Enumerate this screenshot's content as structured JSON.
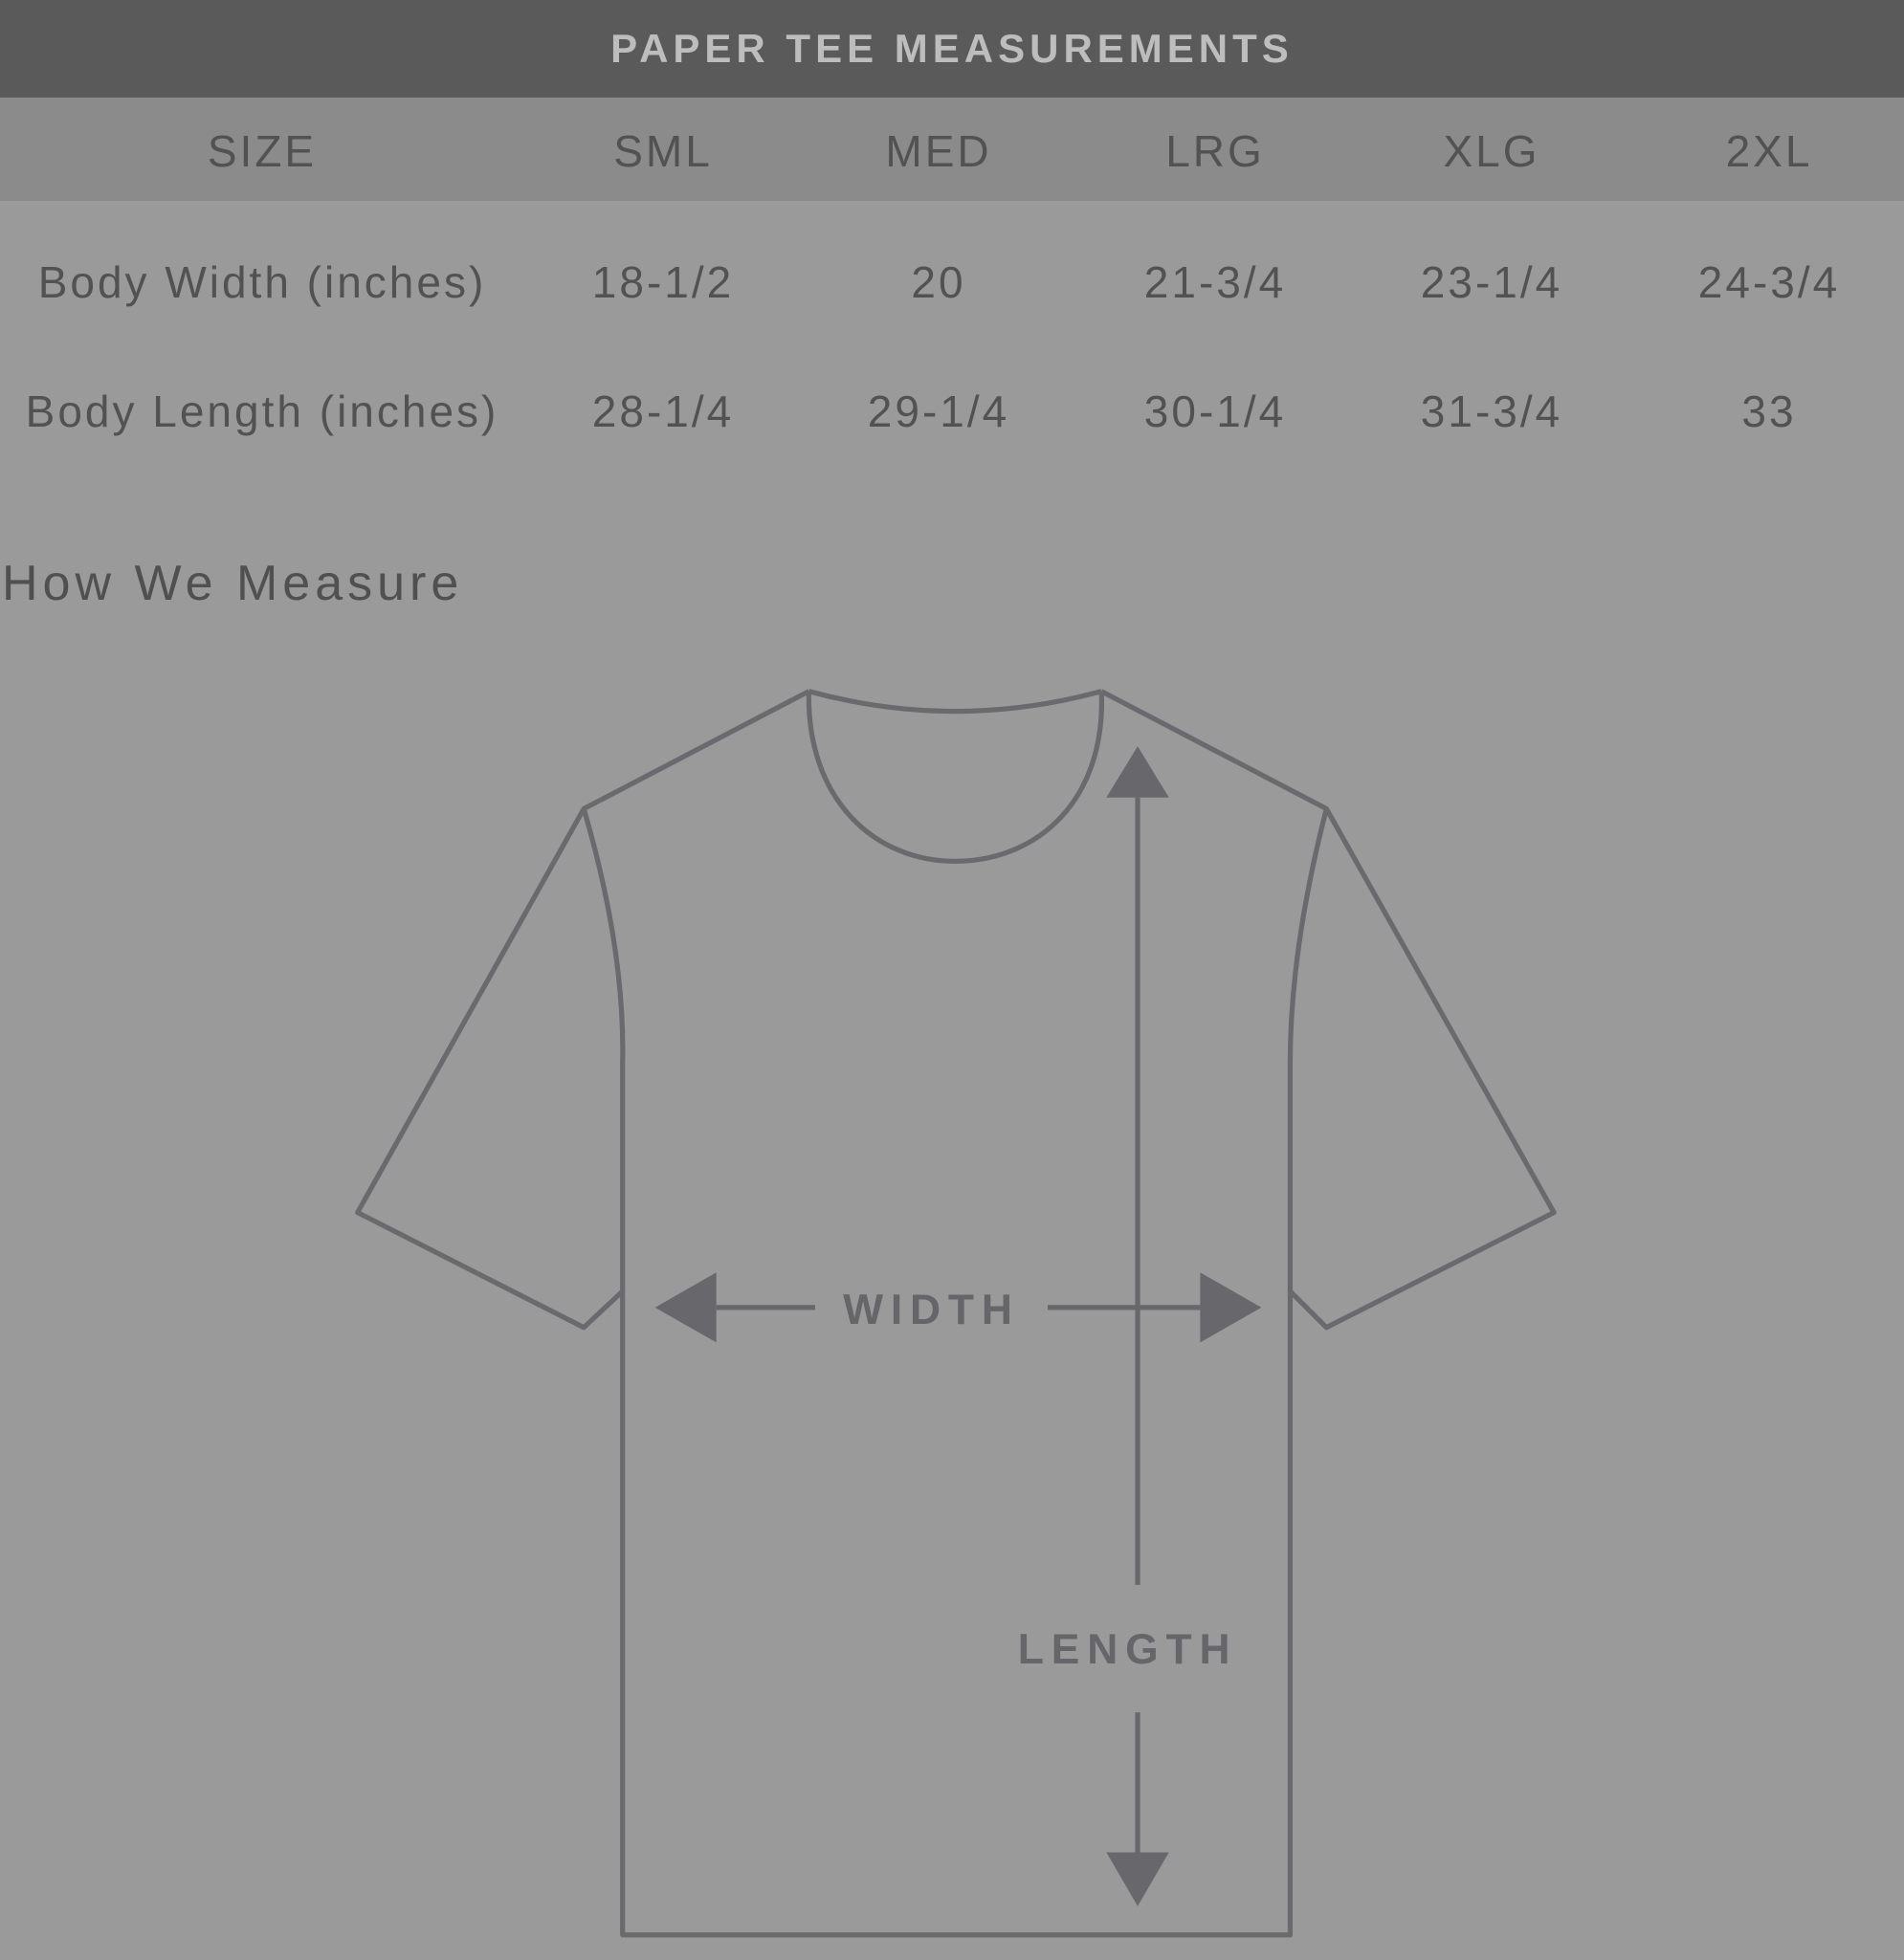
{
  "title": "PAPER TEE MEASUREMENTS",
  "table": {
    "header": [
      "SIZE",
      "SML",
      "MED",
      "LRG",
      "XLG",
      "2XL"
    ],
    "rows": [
      {
        "label": "Body Width (inches)",
        "values": [
          "18-1/2",
          "20",
          "21-3/4",
          "23-1/4",
          "24-3/4"
        ]
      },
      {
        "label": "Body Length (inches)",
        "values": [
          "28-1/4",
          "29-1/4",
          "30-1/4",
          "31-3/4",
          "33"
        ]
      }
    ]
  },
  "how_we_measure": {
    "heading": "How We Measure",
    "width_label": "WIDTH",
    "length_label": "LENGTH"
  },
  "colors": {
    "header_bg": "#5a5a5a",
    "size_row_bg": "#8b8b8b",
    "background": "#9a9a9a",
    "outline": "#6a6a6e"
  }
}
